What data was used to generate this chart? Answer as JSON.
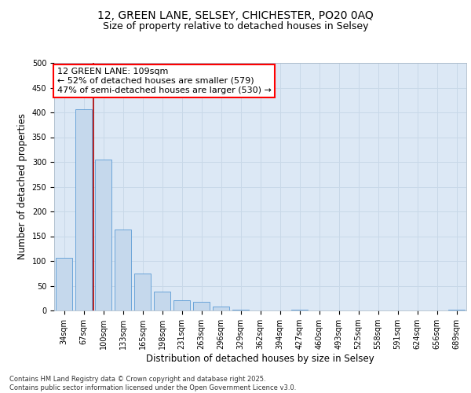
{
  "title_line1": "12, GREEN LANE, SELSEY, CHICHESTER, PO20 0AQ",
  "title_line2": "Size of property relative to detached houses in Selsey",
  "xlabel": "Distribution of detached houses by size in Selsey",
  "ylabel": "Number of detached properties",
  "categories": [
    "34sqm",
    "67sqm",
    "100sqm",
    "133sqm",
    "165sqm",
    "198sqm",
    "231sqm",
    "263sqm",
    "296sqm",
    "329sqm",
    "362sqm",
    "394sqm",
    "427sqm",
    "460sqm",
    "493sqm",
    "525sqm",
    "558sqm",
    "591sqm",
    "624sqm",
    "656sqm",
    "689sqm"
  ],
  "values": [
    107,
    407,
    305,
    163,
    75,
    38,
    20,
    18,
    8,
    1,
    0,
    0,
    1,
    0,
    0,
    0,
    0,
    0,
    0,
    0,
    1
  ],
  "bar_color": "#c5d8ec",
  "bar_edge_color": "#5b9bd5",
  "grid_color": "#c8d8e8",
  "background_color": "#dce8f5",
  "vline_x": 1.5,
  "vline_color": "#aa0000",
  "annotation_text": "12 GREEN LANE: 109sqm\n← 52% of detached houses are smaller (579)\n47% of semi-detached houses are larger (530) →",
  "ylim": [
    0,
    500
  ],
  "yticks": [
    0,
    50,
    100,
    150,
    200,
    250,
    300,
    350,
    400,
    450,
    500
  ],
  "footer_text": "Contains HM Land Registry data © Crown copyright and database right 2025.\nContains public sector information licensed under the Open Government Licence v3.0.",
  "title_fontsize": 10,
  "subtitle_fontsize": 9,
  "axis_label_fontsize": 8.5,
  "tick_fontsize": 7,
  "annotation_fontsize": 8,
  "footer_fontsize": 6
}
